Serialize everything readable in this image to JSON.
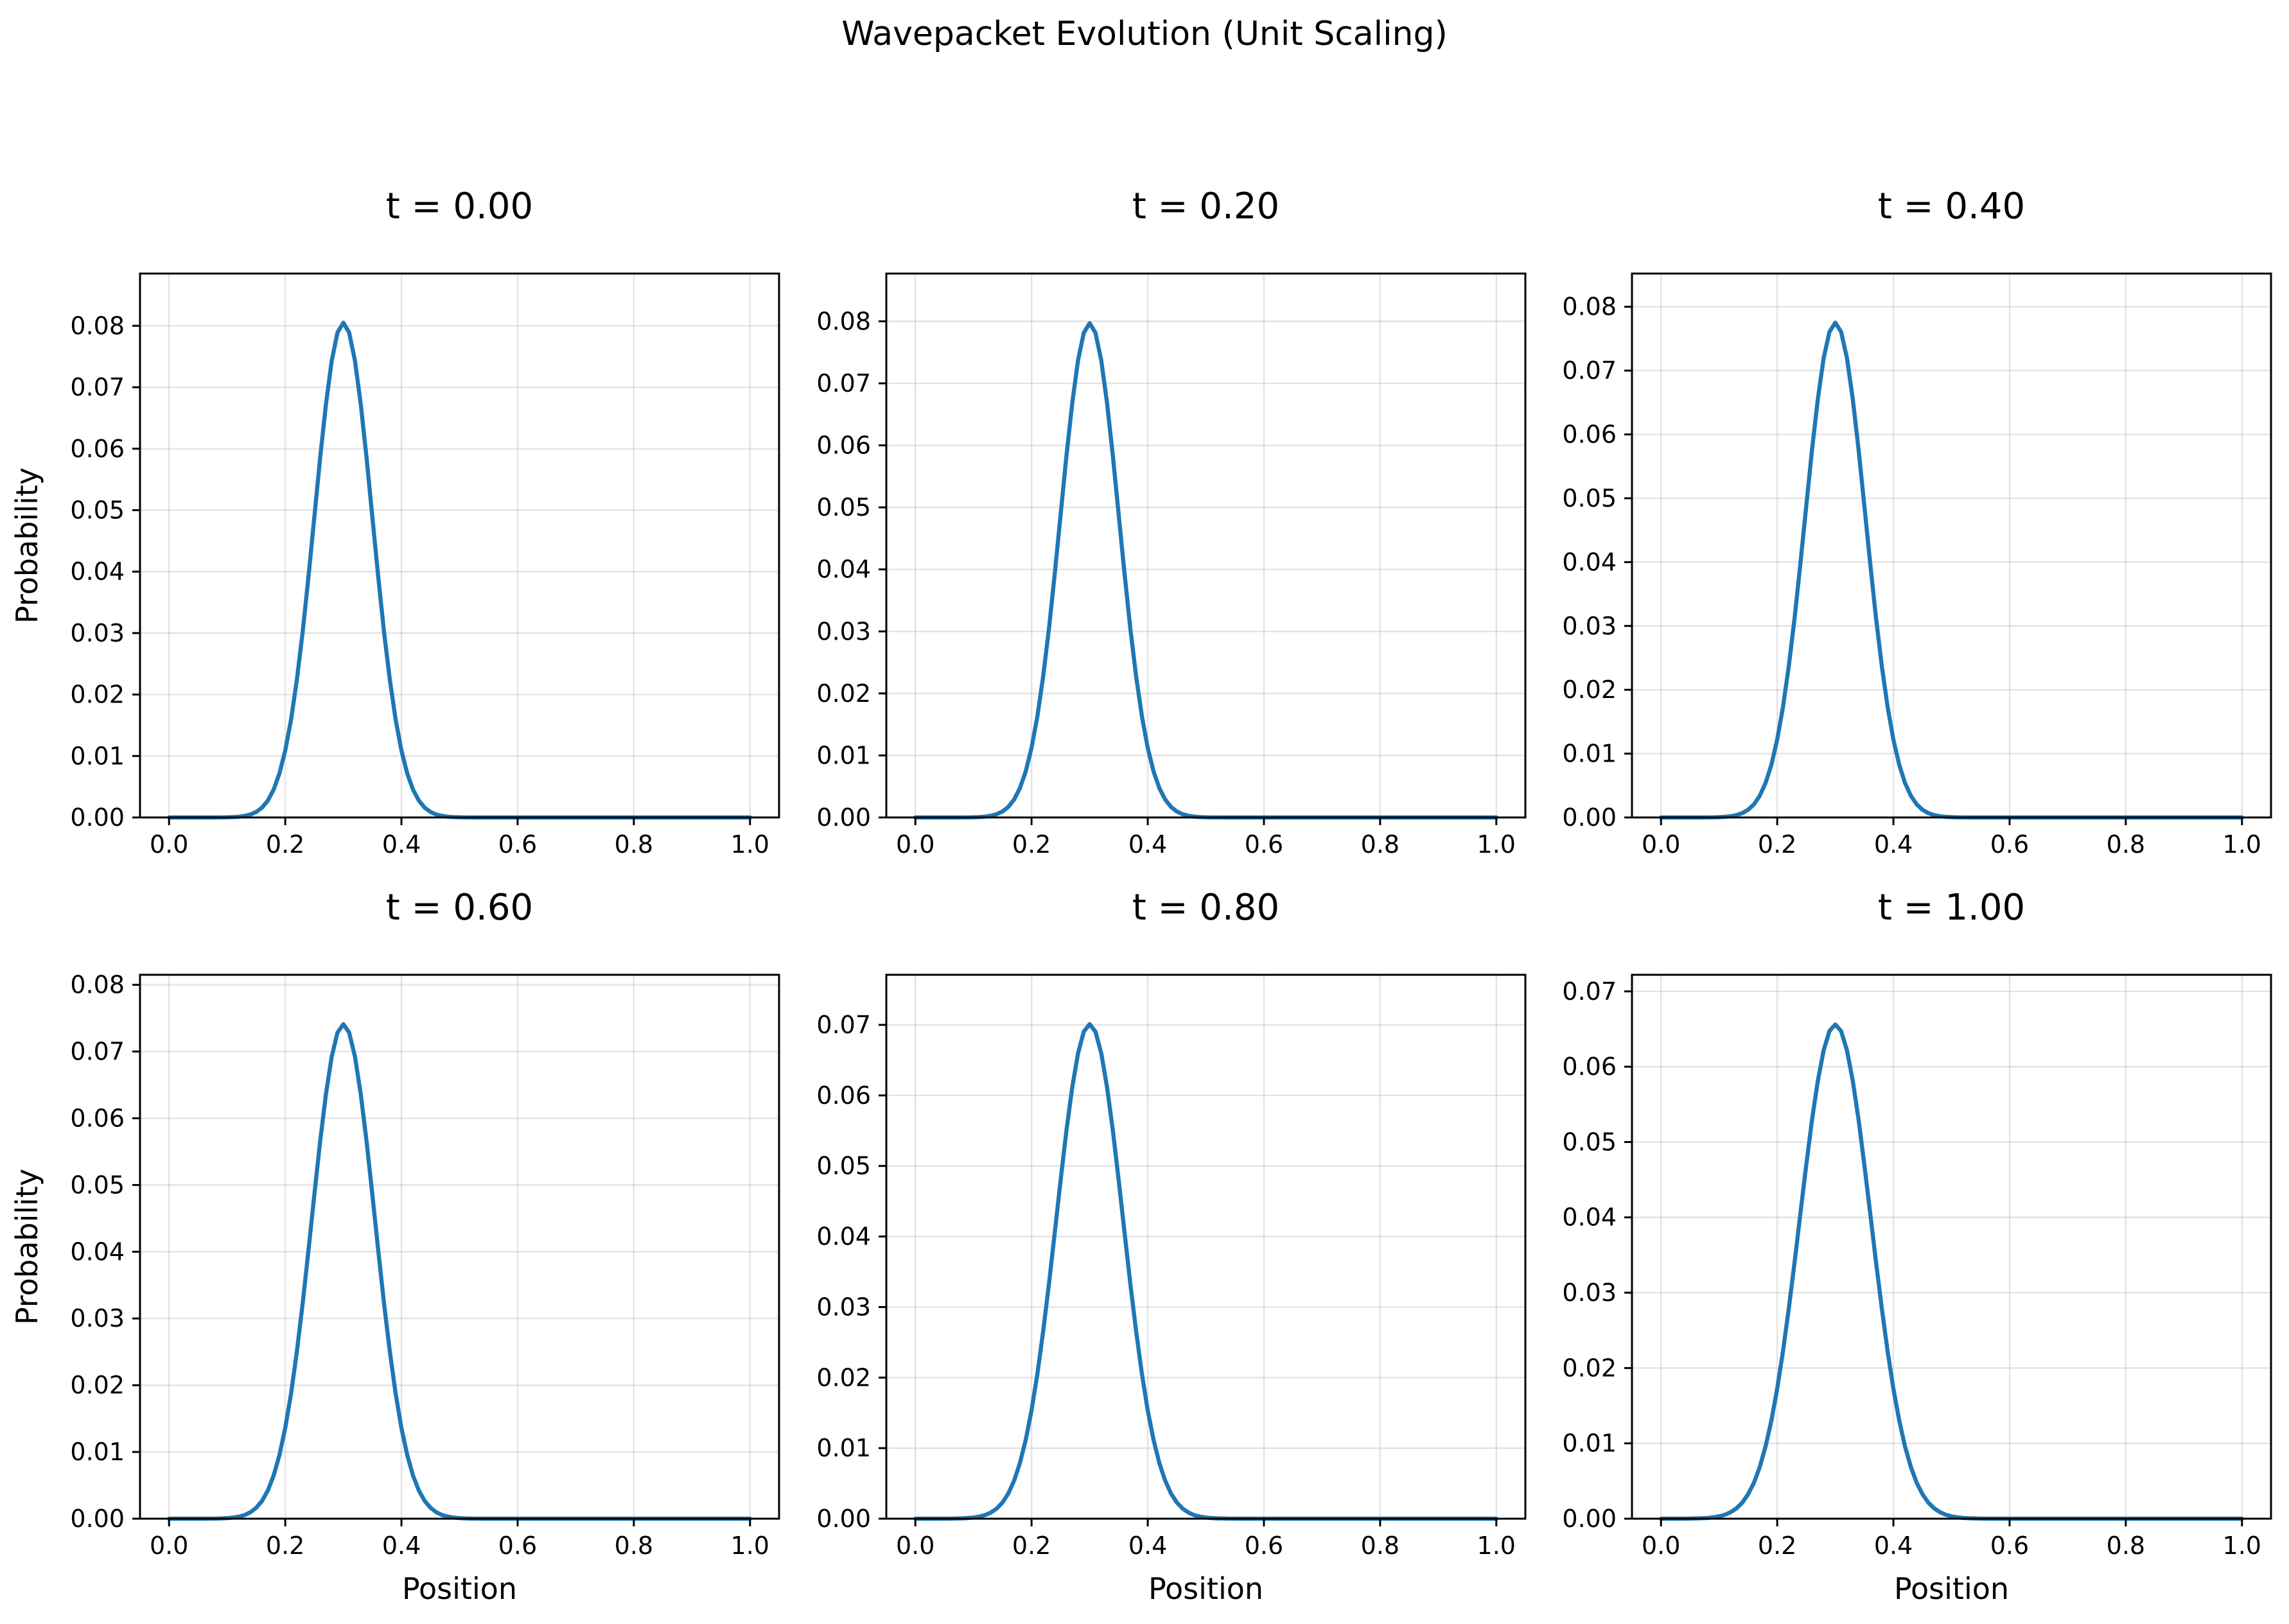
{
  "suptitle": "Wavepacket Evolution (Unit Scaling)",
  "chart_data": [
    {
      "type": "line",
      "title": "t = 0.00",
      "xlabel": "",
      "ylabel": "Probability",
      "xlim": [
        -0.05,
        1.05
      ],
      "ylim": [
        0,
        0.0885
      ],
      "xticks": [
        0.0,
        0.2,
        0.4,
        0.6,
        0.8,
        1.0
      ],
      "xtick_labels": [
        "0.0",
        "0.2",
        "0.4",
        "0.6",
        "0.8",
        "1.0"
      ],
      "yticks": [
        0,
        0.01,
        0.02,
        0.03,
        0.04,
        0.05,
        0.06,
        0.07,
        0.08
      ],
      "ytick_labels": [
        "0.00",
        "0.01",
        "0.02",
        "0.03",
        "0.04",
        "0.05",
        "0.06",
        "0.07",
        "0.08"
      ],
      "grid": true,
      "series": [
        {
          "color": "#1f77b4",
          "peak_x": 0.3,
          "peak_y": 0.0805,
          "sigma": 0.05,
          "x_range": [
            0.0,
            1.0
          ]
        }
      ]
    },
    {
      "type": "line",
      "title": "t = 0.20",
      "xlabel": "",
      "ylabel": "",
      "xlim": [
        -0.05,
        1.05
      ],
      "ylim": [
        0,
        0.0877
      ],
      "xticks": [
        0.0,
        0.2,
        0.4,
        0.6,
        0.8,
        1.0
      ],
      "xtick_labels": [
        "0.0",
        "0.2",
        "0.4",
        "0.6",
        "0.8",
        "1.0"
      ],
      "yticks": [
        0,
        0.01,
        0.02,
        0.03,
        0.04,
        0.05,
        0.06,
        0.07,
        0.08
      ],
      "ytick_labels": [
        "0.00",
        "0.01",
        "0.02",
        "0.03",
        "0.04",
        "0.05",
        "0.06",
        "0.07",
        "0.08"
      ],
      "grid": true,
      "series": [
        {
          "color": "#1f77b4",
          "peak_x": 0.3,
          "peak_y": 0.0797,
          "sigma": 0.0505,
          "x_range": [
            0.0,
            1.0
          ]
        }
      ]
    },
    {
      "type": "line",
      "title": "t = 0.40",
      "xlabel": "",
      "ylabel": "",
      "xlim": [
        -0.05,
        1.05
      ],
      "ylim": [
        0,
        0.0852
      ],
      "xticks": [
        0.0,
        0.2,
        0.4,
        0.6,
        0.8,
        1.0
      ],
      "xtick_labels": [
        "0.0",
        "0.2",
        "0.4",
        "0.6",
        "0.8",
        "1.0"
      ],
      "yticks": [
        0,
        0.01,
        0.02,
        0.03,
        0.04,
        0.05,
        0.06,
        0.07,
        0.08
      ],
      "ytick_labels": [
        "0.00",
        "0.01",
        "0.02",
        "0.03",
        "0.04",
        "0.05",
        "0.06",
        "0.07",
        "0.08"
      ],
      "grid": true,
      "series": [
        {
          "color": "#1f77b4",
          "peak_x": 0.3,
          "peak_y": 0.0775,
          "sigma": 0.052,
          "x_range": [
            0.0,
            1.0
          ]
        }
      ]
    },
    {
      "type": "line",
      "title": "t = 0.60",
      "xlabel": "Position",
      "ylabel": "Probability",
      "xlim": [
        -0.05,
        1.05
      ],
      "ylim": [
        0,
        0.0815
      ],
      "xticks": [
        0.0,
        0.2,
        0.4,
        0.6,
        0.8,
        1.0
      ],
      "xtick_labels": [
        "0.0",
        "0.2",
        "0.4",
        "0.6",
        "0.8",
        "1.0"
      ],
      "yticks": [
        0,
        0.01,
        0.02,
        0.03,
        0.04,
        0.05,
        0.06,
        0.07,
        0.08
      ],
      "ytick_labels": [
        "0.00",
        "0.01",
        "0.02",
        "0.03",
        "0.04",
        "0.05",
        "0.06",
        "0.07",
        "0.08"
      ],
      "grid": true,
      "series": [
        {
          "color": "#1f77b4",
          "peak_x": 0.3,
          "peak_y": 0.0741,
          "sigma": 0.0543,
          "x_range": [
            0.0,
            1.0
          ]
        }
      ]
    },
    {
      "type": "line",
      "title": "t = 0.80",
      "xlabel": "Position",
      "ylabel": "",
      "xlim": [
        -0.05,
        1.05
      ],
      "ylim": [
        0,
        0.0771
      ],
      "xticks": [
        0.0,
        0.2,
        0.4,
        0.6,
        0.8,
        1.0
      ],
      "xtick_labels": [
        "0.0",
        "0.2",
        "0.4",
        "0.6",
        "0.8",
        "1.0"
      ],
      "yticks": [
        0,
        0.01,
        0.02,
        0.03,
        0.04,
        0.05,
        0.06,
        0.07
      ],
      "ytick_labels": [
        "0.00",
        "0.01",
        "0.02",
        "0.03",
        "0.04",
        "0.05",
        "0.06",
        "0.07"
      ],
      "grid": true,
      "series": [
        {
          "color": "#1f77b4",
          "peak_x": 0.3,
          "peak_y": 0.0701,
          "sigma": 0.0574,
          "x_range": [
            0.0,
            1.0
          ]
        }
      ]
    },
    {
      "type": "line",
      "title": "t = 1.00",
      "xlabel": "Position",
      "ylabel": "",
      "xlim": [
        -0.05,
        1.05
      ],
      "ylim": [
        0,
        0.0722
      ],
      "xticks": [
        0.0,
        0.2,
        0.4,
        0.6,
        0.8,
        1.0
      ],
      "xtick_labels": [
        "0.0",
        "0.2",
        "0.4",
        "0.6",
        "0.8",
        "1.0"
      ],
      "yticks": [
        0,
        0.01,
        0.02,
        0.03,
        0.04,
        0.05,
        0.06,
        0.07
      ],
      "ytick_labels": [
        "0.00",
        "0.01",
        "0.02",
        "0.03",
        "0.04",
        "0.05",
        "0.06",
        "0.07"
      ],
      "grid": true,
      "series": [
        {
          "color": "#1f77b4",
          "peak_x": 0.3,
          "peak_y": 0.0656,
          "sigma": 0.0612,
          "x_range": [
            0.0,
            1.0
          ]
        }
      ]
    }
  ]
}
